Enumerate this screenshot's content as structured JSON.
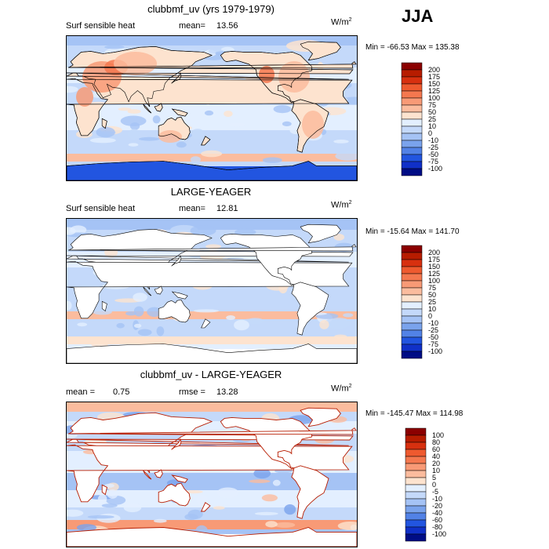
{
  "season": "JJA",
  "colors": {
    "land": "#ffffff",
    "coast": "#000000"
  },
  "panels": [
    {
      "id": "model",
      "title": "clubbmf_uv (yrs 1979-1979)",
      "left_label": "Surf sensible heat",
      "stat1_label": "mean=",
      "stat1_value": "13.56",
      "stat2_label": "",
      "stat2_value": "",
      "units": "W/m",
      "units_exp": "2",
      "minmax": "Min = -66.53  Max = 135.38",
      "land_filled": true
    },
    {
      "id": "obs",
      "title": "LARGE-YEAGER",
      "left_label": "Surf sensible heat",
      "stat1_label": "mean=",
      "stat1_value": "12.81",
      "stat2_label": "",
      "stat2_value": "",
      "units": "W/m",
      "units_exp": "2",
      "minmax": "Min = -15.64  Max = 141.70",
      "land_filled": false
    },
    {
      "id": "diff",
      "title": "clubbmf_uv - LARGE-YEAGER",
      "left_label": "",
      "stat1_label": "mean =",
      "stat1_value": "0.75",
      "stat2_label": "rmse =",
      "stat2_value": "13.28",
      "units": "W/m",
      "units_exp": "2",
      "minmax": "Min = -145.47  Max = 114.98",
      "land_filled": false
    }
  ],
  "chart_data": [
    {
      "type": "heatmap",
      "title": "clubbmf_uv (yrs 1979-1979)",
      "variable": "Surf sensible heat",
      "units": "W/m2",
      "mean": 13.56,
      "min": -66.53,
      "max": 135.38,
      "contour_levels": [
        "200",
        "175",
        "150",
        "125",
        "100",
        "75",
        "50",
        "25",
        "10",
        "0",
        "-10",
        "-25",
        "-50",
        "-75",
        "-100"
      ],
      "colors": [
        "#8b0000",
        "#b71c00",
        "#d7300f",
        "#ee5a2f",
        "#f4784f",
        "#f89a76",
        "#fbbc9e",
        "#fde3cf",
        "#e3efff",
        "#c4d9fa",
        "#a5c3f5",
        "#7aa3ec",
        "#5282e6",
        "#2255e0",
        "#1030c8",
        "#000d85"
      ]
    },
    {
      "type": "heatmap",
      "title": "LARGE-YEAGER",
      "variable": "Surf sensible heat",
      "units": "W/m2",
      "mean": 12.81,
      "min": -15.64,
      "max": 141.7,
      "contour_levels": [
        "200",
        "175",
        "150",
        "125",
        "100",
        "75",
        "50",
        "25",
        "10",
        "0",
        "-10",
        "-25",
        "-50",
        "-75",
        "-100"
      ],
      "colors": [
        "#8b0000",
        "#b71c00",
        "#d7300f",
        "#ee5a2f",
        "#f4784f",
        "#f89a76",
        "#fbbc9e",
        "#fde3cf",
        "#e3efff",
        "#c4d9fa",
        "#a5c3f5",
        "#7aa3ec",
        "#5282e6",
        "#2255e0",
        "#1030c8",
        "#000d85"
      ]
    },
    {
      "type": "heatmap",
      "title": "clubbmf_uv - LARGE-YEAGER",
      "units": "W/m2",
      "mean": 0.75,
      "rmse": 13.28,
      "min": -145.47,
      "max": 114.98,
      "contour_levels": [
        "100",
        "80",
        "60",
        "40",
        "20",
        "10",
        "5",
        "0",
        "-5",
        "-10",
        "-20",
        "-40",
        "-60",
        "-80",
        "-100"
      ],
      "colors": [
        "#8b0000",
        "#b71c00",
        "#d7300f",
        "#ee5a2f",
        "#f4784f",
        "#f89a76",
        "#fbbc9e",
        "#fde3cf",
        "#e3efff",
        "#c4d9fa",
        "#a5c3f5",
        "#7aa3ec",
        "#5282e6",
        "#2255e0",
        "#1030c8",
        "#000d85"
      ]
    }
  ]
}
